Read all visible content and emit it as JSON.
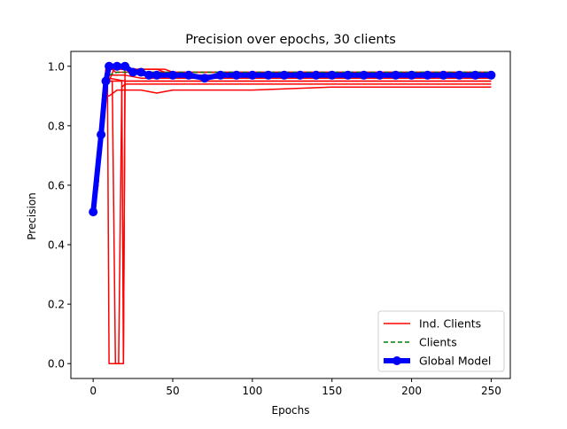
{
  "chart_data": {
    "type": "line",
    "title": "Precision over epochs, 30 clients",
    "xlabel": "Epochs",
    "ylabel": "Precision",
    "xlim": [
      -14,
      262
    ],
    "ylim": [
      -0.05,
      1.05
    ],
    "x_ticks": [
      0,
      50,
      100,
      150,
      200,
      250
    ],
    "y_ticks": [
      0.0,
      0.2,
      0.4,
      0.6,
      0.8,
      1.0
    ],
    "x_tick_labels": [
      "0",
      "50",
      "100",
      "150",
      "200",
      "250"
    ],
    "y_tick_labels": [
      "0.0",
      "0.2",
      "0.4",
      "0.6",
      "0.8",
      "1.0"
    ],
    "grid": false,
    "legend": {
      "placement": "lower-right",
      "entries": [
        {
          "label": "Ind. Clients",
          "color": "#ff0000",
          "style": "solid"
        },
        {
          "label": "Clients",
          "color": "#008000",
          "style": "dashed"
        },
        {
          "label": "Global Model",
          "color": "#0000ff",
          "style": "thick-marker"
        }
      ]
    },
    "colors": {
      "ind_clients": "#ff0000",
      "clients": "#008000",
      "global_model": "#0000ff"
    },
    "series": [
      {
        "name": "Ind. Clients",
        "kind": "ind",
        "x": [
          0,
          3,
          6,
          8,
          10,
          12,
          14,
          18,
          20,
          30,
          40,
          50,
          100,
          150,
          200,
          250
        ],
        "y": [
          0.52,
          0.6,
          0.85,
          0.99,
          0.99,
          0.99,
          0.98,
          0.98,
          0.98,
          0.98,
          0.98,
          0.98,
          0.98,
          0.98,
          0.98,
          0.98
        ]
      },
      {
        "name": "Ind. Clients",
        "kind": "ind",
        "x": [
          0,
          3,
          6,
          8,
          10,
          13,
          16,
          19,
          20,
          30,
          40,
          50,
          100,
          150,
          200,
          250
        ],
        "y": [
          0.52,
          0.6,
          0.9,
          0.95,
          0.95,
          0.99,
          0.99,
          0.99,
          0.99,
          0.97,
          0.97,
          0.96,
          0.96,
          0.96,
          0.96,
          0.96
        ]
      },
      {
        "name": "Ind. Clients",
        "kind": "ind",
        "x": [
          0,
          3,
          6,
          8,
          9,
          10,
          12,
          14,
          16,
          18,
          19,
          20,
          22,
          30,
          40,
          50,
          100,
          150,
          200,
          250
        ],
        "y": [
          0.52,
          0.6,
          0.9,
          0.95,
          0.95,
          0.0,
          0.0,
          0.0,
          0.0,
          0.0,
          0.0,
          0.95,
          0.95,
          0.95,
          0.95,
          0.95,
          0.95,
          0.95,
          0.95,
          0.95
        ]
      },
      {
        "name": "Ind. Clients",
        "kind": "ind",
        "x": [
          0,
          3,
          6,
          8,
          12,
          14,
          16,
          18,
          20,
          30,
          40,
          50,
          100,
          150,
          200,
          250
        ],
        "y": [
          0.52,
          0.6,
          0.9,
          0.95,
          0.95,
          0.0,
          0.0,
          0.93,
          0.94,
          0.94,
          0.94,
          0.94,
          0.94,
          0.94,
          0.94,
          0.94
        ]
      },
      {
        "name": "Ind. Clients",
        "kind": "ind",
        "x": [
          0,
          3,
          6,
          8,
          12,
          16,
          18,
          19,
          20,
          30,
          40,
          50,
          100,
          150,
          200,
          250
        ],
        "y": [
          0.52,
          0.6,
          0.9,
          0.95,
          0.95,
          0.95,
          0.95,
          0.0,
          0.99,
          0.99,
          0.99,
          0.97,
          0.97,
          0.97,
          0.97,
          0.97
        ]
      },
      {
        "name": "Ind. Clients",
        "kind": "ind",
        "x": [
          0,
          3,
          6,
          8,
          10,
          20,
          30,
          40,
          45,
          50,
          100,
          150,
          200,
          250
        ],
        "y": [
          0.52,
          0.6,
          0.9,
          0.99,
          0.99,
          0.99,
          0.99,
          0.99,
          0.99,
          0.98,
          0.98,
          0.98,
          0.98,
          0.98
        ]
      },
      {
        "name": "Ind. Clients",
        "kind": "ind",
        "x": [
          0,
          3,
          6,
          8,
          10,
          15,
          20,
          30,
          40,
          50,
          100,
          150,
          200,
          250
        ],
        "y": [
          0.52,
          0.6,
          0.85,
          0.9,
          0.9,
          0.92,
          0.92,
          0.92,
          0.91,
          0.92,
          0.92,
          0.93,
          0.93,
          0.93
        ]
      },
      {
        "name": "Ind. Clients",
        "kind": "ind",
        "x": [
          0,
          3,
          6,
          8,
          10,
          20,
          30,
          40,
          50,
          100,
          150,
          200,
          250
        ],
        "y": [
          0.52,
          0.6,
          0.9,
          0.95,
          0.97,
          0.97,
          0.96,
          0.96,
          0.96,
          0.96,
          0.96,
          0.96,
          0.96
        ]
      },
      {
        "name": "Ind. Clients",
        "kind": "ind",
        "x": [
          0,
          3,
          6,
          8,
          10,
          20,
          30,
          40,
          50,
          100,
          150,
          200,
          250
        ],
        "y": [
          0.52,
          0.6,
          0.88,
          0.94,
          0.96,
          0.95,
          0.95,
          0.95,
          0.95,
          0.95,
          0.95,
          0.95,
          0.95
        ]
      },
      {
        "name": "Ind. Clients",
        "kind": "ind",
        "x": [
          0,
          3,
          6,
          8,
          10,
          20,
          30,
          40,
          50,
          100,
          150,
          200,
          250
        ],
        "y": [
          0.52,
          0.6,
          0.9,
          0.97,
          0.99,
          0.99,
          0.98,
          0.98,
          0.97,
          0.97,
          0.97,
          0.97,
          0.97
        ]
      },
      {
        "name": "Clients",
        "kind": "avg",
        "x": [
          0,
          3,
          6,
          8,
          10,
          15,
          20,
          30,
          40,
          50,
          100,
          150,
          200,
          250
        ],
        "y": [
          0.52,
          0.62,
          0.88,
          0.93,
          0.97,
          0.98,
          0.98,
          0.98,
          0.98,
          0.98,
          0.98,
          0.98,
          0.98,
          0.98
        ]
      },
      {
        "name": "Global Model",
        "kind": "global",
        "x": [
          0,
          5,
          8,
          10,
          15,
          20,
          25,
          30,
          35,
          40,
          50,
          60,
          70,
          80,
          90,
          100,
          110,
          120,
          130,
          140,
          150,
          160,
          170,
          180,
          190,
          200,
          210,
          220,
          230,
          240,
          250
        ],
        "y": [
          0.51,
          0.77,
          0.95,
          1.0,
          1.0,
          1.0,
          0.98,
          0.98,
          0.97,
          0.97,
          0.97,
          0.97,
          0.96,
          0.97,
          0.97,
          0.97,
          0.97,
          0.97,
          0.97,
          0.97,
          0.97,
          0.97,
          0.97,
          0.97,
          0.97,
          0.97,
          0.97,
          0.97,
          0.97,
          0.97,
          0.97
        ]
      }
    ]
  }
}
